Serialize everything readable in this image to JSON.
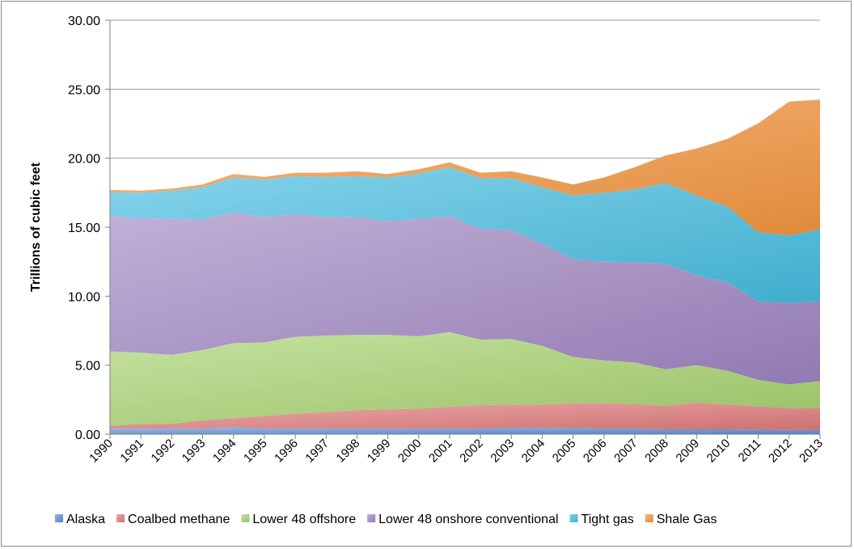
{
  "chart_data": {
    "type": "area",
    "stacked": true,
    "title": "",
    "xlabel": "",
    "ylabel": "Trillions of cubic feet",
    "ylim": [
      0,
      30
    ],
    "yticks": [
      "0.00",
      "5.00",
      "10.00",
      "15.00",
      "20.00",
      "25.00",
      "30.00"
    ],
    "grid": "horizontal",
    "legend": "bottom",
    "categories": [
      "1990",
      "1991",
      "1992",
      "1993",
      "1994",
      "1995",
      "1996",
      "1997",
      "1998",
      "1999",
      "2000",
      "2001",
      "2002",
      "2003",
      "2004",
      "2005",
      "2006",
      "2007",
      "2008",
      "2009",
      "2010",
      "2011",
      "2012",
      "2013"
    ],
    "series": [
      {
        "name": "Alaska",
        "color": "#5b8fd6",
        "values": [
          0.4,
          0.4,
          0.4,
          0.4,
          0.5,
          0.4,
          0.4,
          0.4,
          0.4,
          0.4,
          0.4,
          0.4,
          0.4,
          0.45,
          0.45,
          0.45,
          0.4,
          0.4,
          0.35,
          0.35,
          0.35,
          0.33,
          0.3,
          0.3
        ]
      },
      {
        "name": "Coalbed methane",
        "color": "#e07b7b",
        "values": [
          0.2,
          0.35,
          0.35,
          0.6,
          0.65,
          0.9,
          1.1,
          1.2,
          1.35,
          1.4,
          1.45,
          1.6,
          1.7,
          1.7,
          1.7,
          1.8,
          1.85,
          1.8,
          1.7,
          1.95,
          1.8,
          1.7,
          1.6,
          1.6
        ]
      },
      {
        "name": "Lower 48 offshore",
        "color": "#a6d26e",
        "values": [
          5.4,
          5.15,
          5.0,
          5.1,
          5.45,
          5.35,
          5.55,
          5.55,
          5.45,
          5.4,
          5.25,
          5.4,
          4.75,
          4.75,
          4.25,
          3.35,
          3.1,
          3.0,
          2.65,
          2.7,
          2.45,
          1.9,
          1.7,
          1.95
        ]
      },
      {
        "name": "Lower 48 onshore conventional",
        "color": "#9f85c2",
        "values": [
          9.8,
          9.75,
          9.85,
          9.45,
          9.5,
          9.1,
          8.9,
          8.6,
          8.5,
          8.25,
          8.5,
          8.4,
          8.05,
          7.9,
          7.4,
          7.1,
          7.15,
          7.25,
          7.65,
          6.5,
          6.4,
          5.7,
          5.9,
          5.8
        ]
      },
      {
        "name": "Tight gas",
        "color": "#46bde0",
        "values": [
          1.75,
          1.85,
          2.05,
          2.35,
          2.5,
          2.7,
          2.75,
          2.9,
          3.0,
          3.15,
          3.3,
          3.55,
          3.65,
          3.75,
          4.1,
          4.6,
          5.0,
          5.3,
          5.85,
          5.8,
          5.5,
          5.0,
          4.9,
          5.2
        ]
      },
      {
        "name": "Shale Gas",
        "color": "#f4963f",
        "values": [
          0.15,
          0.15,
          0.15,
          0.2,
          0.25,
          0.2,
          0.25,
          0.3,
          0.35,
          0.25,
          0.3,
          0.35,
          0.4,
          0.5,
          0.7,
          0.8,
          1.1,
          1.6,
          2.0,
          3.4,
          4.9,
          7.9,
          9.7,
          9.4
        ]
      }
    ]
  }
}
